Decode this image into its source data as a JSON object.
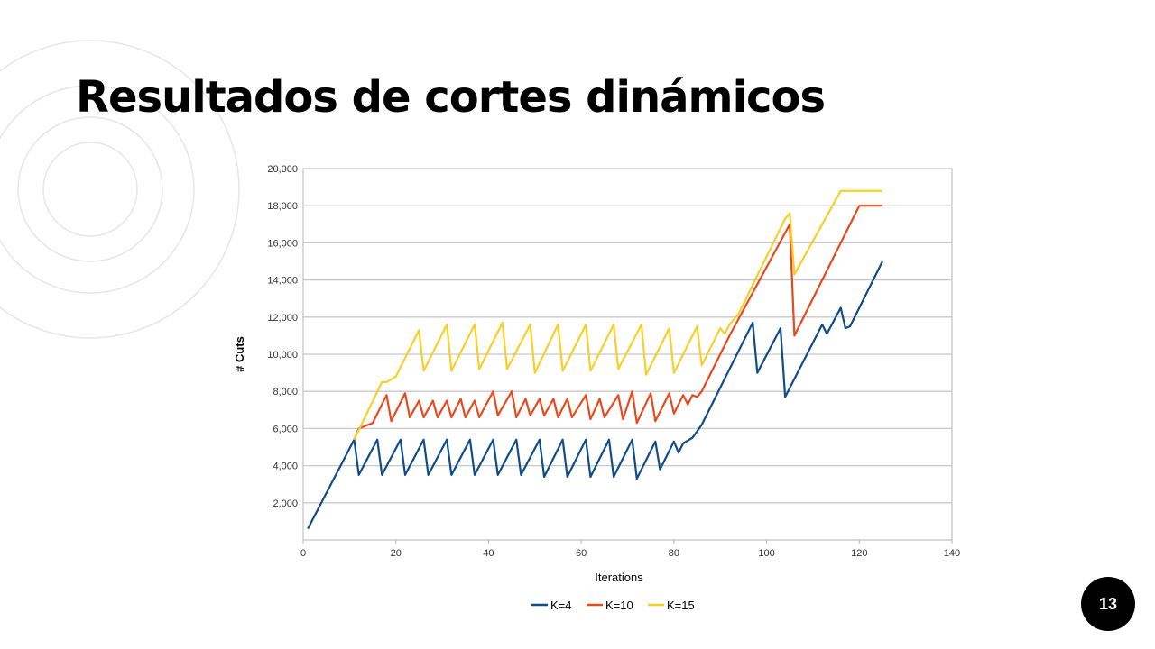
{
  "slide": {
    "title": "Resultados de cortes dinámicos",
    "page_number": "13"
  },
  "chart_data": {
    "type": "line",
    "title": "",
    "xlabel": "Iterations",
    "ylabel": "# Cuts",
    "xlim": [
      0,
      140
    ],
    "ylim": [
      0,
      20000
    ],
    "xticks": [
      "0",
      "20",
      "40",
      "60",
      "80",
      "100",
      "120",
      "140"
    ],
    "yticks": [
      "2,000",
      "4,000",
      "6,000",
      "8,000",
      "10,000",
      "12,000",
      "14,000",
      "16,000",
      "18,000",
      "20,000"
    ],
    "grid": "horizontal",
    "legend_position": "bottom",
    "series": [
      {
        "name": "K=4",
        "color": "#0f4c8a",
        "points": [
          [
            1,
            600
          ],
          [
            11,
            5400
          ],
          [
            12,
            3500
          ],
          [
            16,
            5400
          ],
          [
            17,
            3500
          ],
          [
            21,
            5400
          ],
          [
            22,
            3500
          ],
          [
            26,
            5400
          ],
          [
            27,
            3500
          ],
          [
            31,
            5400
          ],
          [
            32,
            3500
          ],
          [
            36,
            5400
          ],
          [
            37,
            3500
          ],
          [
            41,
            5400
          ],
          [
            42,
            3500
          ],
          [
            46,
            5400
          ],
          [
            47,
            3500
          ],
          [
            51,
            5400
          ],
          [
            52,
            3400
          ],
          [
            56,
            5400
          ],
          [
            57,
            3400
          ],
          [
            61,
            5400
          ],
          [
            62,
            3400
          ],
          [
            66,
            5400
          ],
          [
            67,
            3400
          ],
          [
            71,
            5400
          ],
          [
            72,
            3300
          ],
          [
            76,
            5300
          ],
          [
            77,
            3800
          ],
          [
            80,
            5300
          ],
          [
            81,
            4700
          ],
          [
            82,
            5200
          ],
          [
            84,
            5500
          ],
          [
            86,
            6200
          ],
          [
            97,
            11700
          ],
          [
            98,
            9000
          ],
          [
            103,
            11400
          ],
          [
            104,
            7700
          ],
          [
            112,
            11600
          ],
          [
            113,
            11100
          ],
          [
            116,
            12500
          ],
          [
            117,
            11400
          ],
          [
            118,
            11500
          ],
          [
            125,
            15000
          ]
        ]
      },
      {
        "name": "K=10",
        "color": "#e8491d",
        "points": [
          [
            11,
            5400
          ],
          [
            12,
            6000
          ],
          [
            15,
            6300
          ],
          [
            18,
            7800
          ],
          [
            19,
            6400
          ],
          [
            22,
            7900
          ],
          [
            23,
            6600
          ],
          [
            25,
            7500
          ],
          [
            26,
            6600
          ],
          [
            28,
            7500
          ],
          [
            29,
            6600
          ],
          [
            31,
            7500
          ],
          [
            32,
            6600
          ],
          [
            34,
            7600
          ],
          [
            35,
            6600
          ],
          [
            37,
            7500
          ],
          [
            38,
            6600
          ],
          [
            41,
            8000
          ],
          [
            42,
            6700
          ],
          [
            45,
            8000
          ],
          [
            46,
            6600
          ],
          [
            48,
            7600
          ],
          [
            49,
            6700
          ],
          [
            51,
            7600
          ],
          [
            52,
            6700
          ],
          [
            54,
            7600
          ],
          [
            55,
            6600
          ],
          [
            57,
            7600
          ],
          [
            58,
            6600
          ],
          [
            61,
            7800
          ],
          [
            62,
            6500
          ],
          [
            64,
            7600
          ],
          [
            65,
            6600
          ],
          [
            68,
            7800
          ],
          [
            69,
            6500
          ],
          [
            71,
            8000
          ],
          [
            72,
            6300
          ],
          [
            75,
            7900
          ],
          [
            76,
            6400
          ],
          [
            79,
            7900
          ],
          [
            80,
            6800
          ],
          [
            82,
            7800
          ],
          [
            83,
            7300
          ],
          [
            84,
            7800
          ],
          [
            85,
            7700
          ],
          [
            86,
            8000
          ],
          [
            88,
            9000
          ],
          [
            92,
            11000
          ],
          [
            105,
            17000
          ],
          [
            106,
            11000
          ],
          [
            120,
            18000
          ],
          [
            125,
            18000
          ]
        ]
      },
      {
        "name": "K=15",
        "color": "#f7cf2a",
        "points": [
          [
            11,
            5400
          ],
          [
            17,
            8500
          ],
          [
            18,
            8500
          ],
          [
            20,
            8800
          ],
          [
            25,
            11300
          ],
          [
            26,
            9100
          ],
          [
            31,
            11600
          ],
          [
            32,
            9100
          ],
          [
            37,
            11600
          ],
          [
            38,
            9200
          ],
          [
            43,
            11700
          ],
          [
            44,
            9200
          ],
          [
            49,
            11600
          ],
          [
            50,
            9000
          ],
          [
            55,
            11600
          ],
          [
            56,
            9100
          ],
          [
            61,
            11600
          ],
          [
            62,
            9100
          ],
          [
            67,
            11600
          ],
          [
            68,
            9200
          ],
          [
            73,
            11600
          ],
          [
            74,
            8900
          ],
          [
            79,
            11400
          ],
          [
            80,
            9000
          ],
          [
            85,
            11500
          ],
          [
            86,
            9400
          ],
          [
            90,
            11400
          ],
          [
            91,
            11100
          ],
          [
            92,
            11600
          ],
          [
            94,
            12200
          ],
          [
            104,
            17300
          ],
          [
            105,
            17600
          ],
          [
            106,
            14300
          ],
          [
            116,
            18800
          ],
          [
            125,
            18800
          ]
        ]
      }
    ]
  }
}
